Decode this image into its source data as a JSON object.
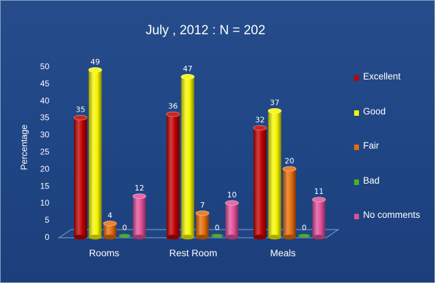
{
  "chart_data": {
    "type": "bar",
    "title": "July , 2012  :  N = 202",
    "xlabel": "",
    "ylabel": "Percentage",
    "ylim": [
      0,
      50
    ],
    "yticks": [
      0,
      5,
      10,
      15,
      20,
      25,
      30,
      35,
      40,
      45,
      50
    ],
    "grid": false,
    "legend_position": "right",
    "categories": [
      "Rooms",
      "Rest Room",
      "Meals"
    ],
    "series": [
      {
        "name": "Excellent",
        "color": "#c00000",
        "values": [
          35,
          36,
          32
        ]
      },
      {
        "name": "Good",
        "color": "#f5f500",
        "values": [
          49,
          47,
          37
        ]
      },
      {
        "name": "Fair",
        "color": "#e46c0a",
        "values": [
          4,
          7,
          20
        ]
      },
      {
        "name": "Bad",
        "color": "#4caf2a",
        "values": [
          0,
          0,
          0
        ]
      },
      {
        "name": "No comments",
        "color": "#e04f9a",
        "values": [
          12,
          10,
          11
        ]
      }
    ]
  }
}
